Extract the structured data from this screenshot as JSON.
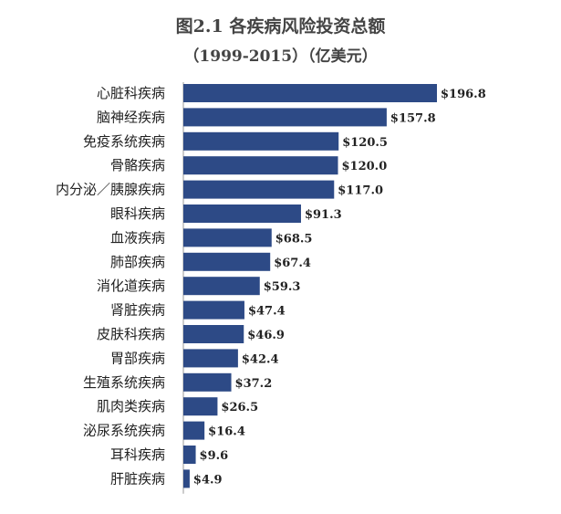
{
  "title": "图2.1 各疾病风险投资总额",
  "subtitle": "（1999-2015）（亿美元）",
  "colors": {
    "bar": "#2d4a86",
    "axis": "#999999"
  },
  "chart_data": {
    "type": "bar",
    "orientation": "horizontal",
    "title": "图2.1 各疾病风险投资总额",
    "subtitle": "（1999-2015）（亿美元）",
    "categories": [
      "心脏科疾病",
      "脑神经疾病",
      "免疫系统疾病",
      "骨骼疾病",
      "内分泌／胰腺疾病",
      "眼科疾病",
      "血液疾病",
      "肺部疾病",
      "消化道疾病",
      "肾脏疾病",
      "皮肤科疾病",
      "胃部疾病",
      "生殖系统疾病",
      "肌肉类疾病",
      "泌尿系统疾病",
      "耳科疾病",
      "肝脏疾病"
    ],
    "values": [
      196.8,
      157.8,
      120.5,
      120.0,
      117.0,
      91.3,
      68.5,
      67.4,
      59.3,
      47.4,
      46.9,
      42.4,
      37.2,
      26.5,
      16.4,
      9.6,
      4.9
    ],
    "value_labels": [
      "$196.8",
      "$157.8",
      "$120.5",
      "$120.0",
      "$117.0",
      "$91.3",
      "$68.5",
      "$67.4",
      "$59.3",
      "$47.4",
      "$46.9",
      "$42.4",
      "$37.2",
      "$26.5",
      "$16.4",
      "$9.6",
      "$4.9"
    ],
    "xlim": [
      0,
      196.8
    ],
    "grid": false,
    "legend": "none"
  }
}
